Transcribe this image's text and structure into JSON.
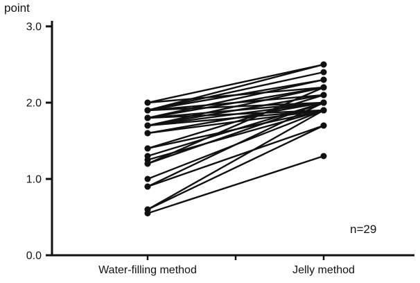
{
  "chart_data": {
    "type": "line",
    "subtype": "paired-slope-plot",
    "title": "",
    "ylabel": "point",
    "xlabel": "",
    "ylim": [
      0.0,
      3.0
    ],
    "yticks": [
      0.0,
      1.0,
      2.0,
      3.0
    ],
    "categories": [
      "Water-filling method",
      "Jelly method"
    ],
    "annotation": "n=29",
    "n": 29,
    "legend": "none",
    "grid": false,
    "line_color": "#111111",
    "point_color": "#111111",
    "series": [
      {
        "name": "paired-scores",
        "pairs": [
          [
            2.0,
            2.5
          ],
          [
            2.0,
            2.2
          ],
          [
            1.9,
            2.5
          ],
          [
            1.9,
            2.4
          ],
          [
            1.9,
            2.3
          ],
          [
            1.9,
            2.1
          ],
          [
            1.9,
            2.0
          ],
          [
            1.8,
            2.3
          ],
          [
            1.8,
            2.2
          ],
          [
            1.8,
            2.0
          ],
          [
            1.8,
            1.9
          ],
          [
            1.7,
            2.2
          ],
          [
            1.7,
            2.1
          ],
          [
            1.7,
            2.0
          ],
          [
            1.7,
            1.9
          ],
          [
            1.6,
            2.0
          ],
          [
            1.6,
            1.9
          ],
          [
            1.4,
            2.1
          ],
          [
            1.4,
            1.9
          ],
          [
            1.3,
            2.0
          ],
          [
            1.25,
            1.9
          ],
          [
            1.2,
            2.2
          ],
          [
            1.2,
            2.0
          ],
          [
            1.0,
            1.9
          ],
          [
            0.9,
            2.0
          ],
          [
            0.9,
            1.7
          ],
          [
            0.6,
            1.9
          ],
          [
            0.6,
            1.7
          ],
          [
            0.55,
            1.3
          ]
        ]
      }
    ]
  }
}
